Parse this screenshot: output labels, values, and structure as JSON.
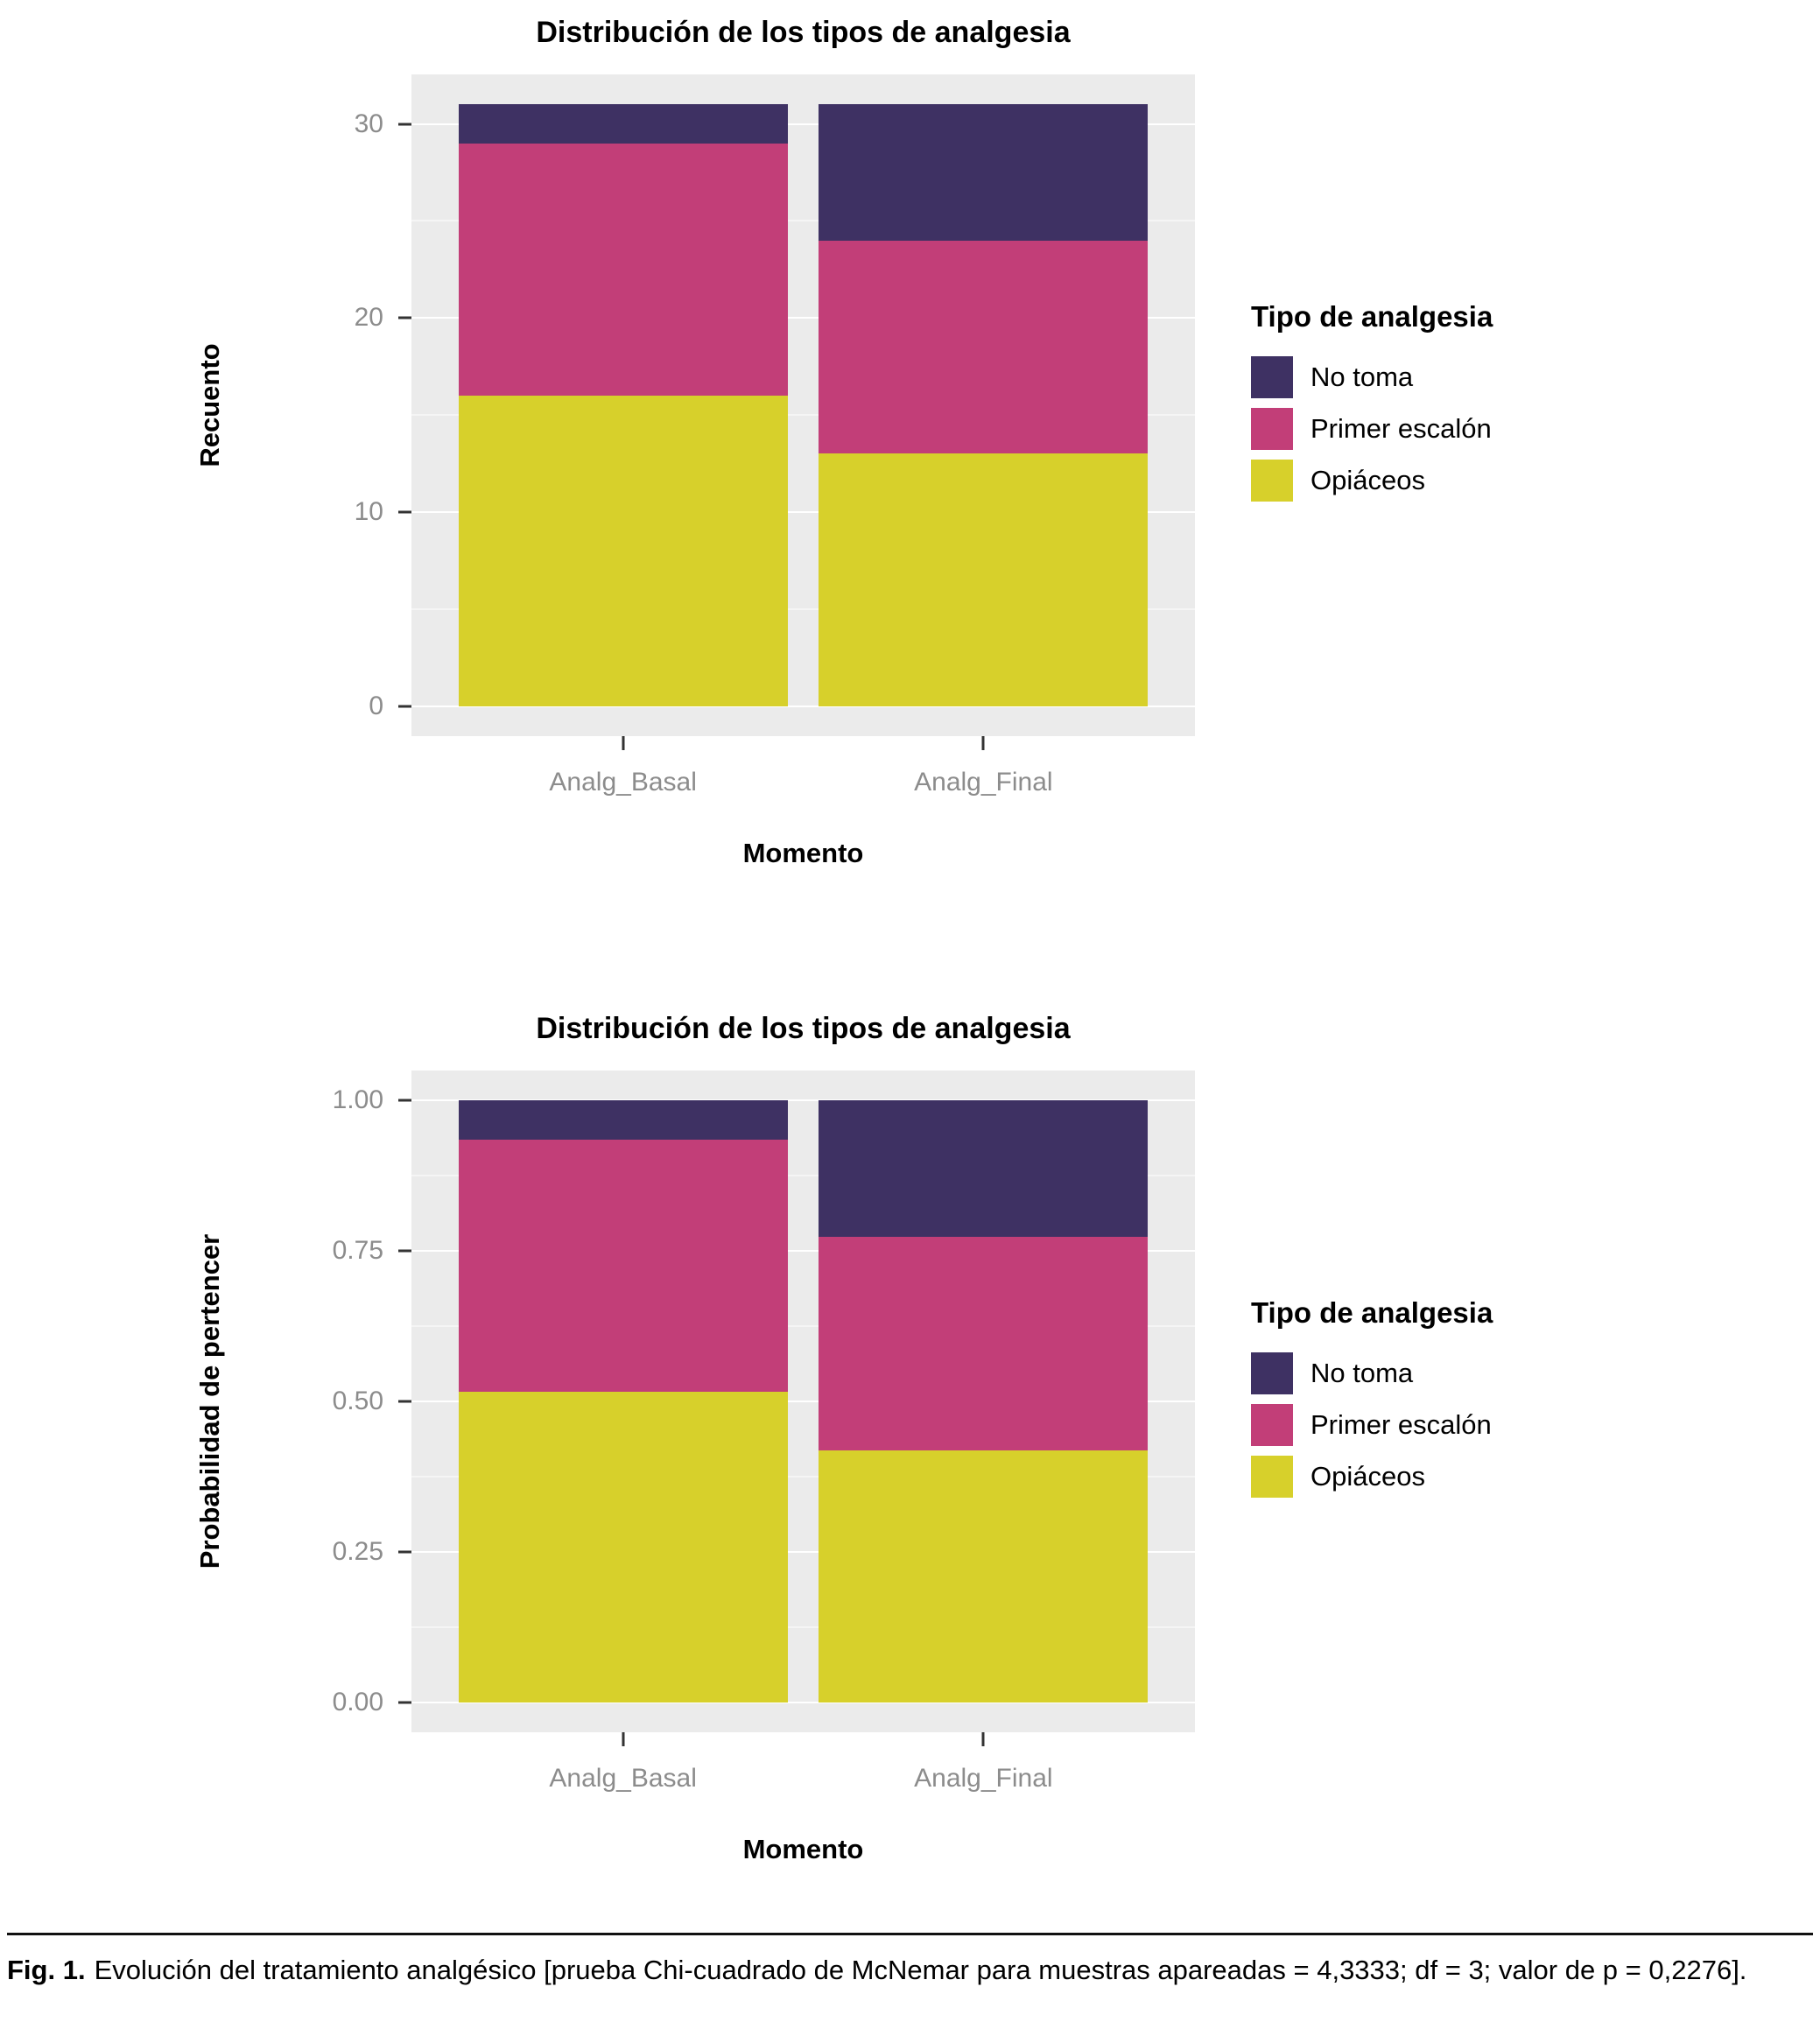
{
  "palette": {
    "no_toma": "#3e3163",
    "primer_escalon": "#c23e78",
    "opiaceos": "#d7d02b",
    "panel_background": "#ebebeb",
    "gridline": "#ffffff",
    "tick_text": "#8c8c8c"
  },
  "legend": {
    "title": "Tipo de analgesia",
    "entries": [
      {
        "label": "No toma",
        "color": "#3e3163"
      },
      {
        "label": "Primer escalón",
        "color": "#c23e78"
      },
      {
        "label": "Opiáceos",
        "color": "#d7d02b"
      }
    ]
  },
  "chart_data": [
    {
      "type": "bar",
      "stacked": true,
      "title": "Distribución de los tipos de analgesia",
      "xlabel": "Momento",
      "ylabel": "Recuento",
      "categories": [
        "Analg_Basal",
        "Analg_Final"
      ],
      "series": [
        {
          "name": "Opiáceos",
          "values": [
            16,
            13
          ]
        },
        {
          "name": "Primer escalón",
          "values": [
            13,
            11
          ]
        },
        {
          "name": "No toma",
          "values": [
            2,
            7
          ]
        }
      ],
      "colors": [
        "#d7d02b",
        "#c23e78",
        "#3e3163"
      ],
      "ymax": 31,
      "ylim": [
        0,
        31
      ],
      "yticks": [
        {
          "v": 0,
          "label": "0"
        },
        {
          "v": 10,
          "label": "10"
        },
        {
          "v": 20,
          "label": "20"
        },
        {
          "v": 30,
          "label": "30"
        }
      ],
      "yminor": [
        5,
        15,
        25
      ],
      "legend_title": "Tipo de analgesia",
      "legend_position": "right",
      "grid": true
    },
    {
      "type": "bar",
      "stacked": true,
      "title": "Distribución de los tipos de analgesia",
      "xlabel": "Momento",
      "ylabel": "Probabilidad de pertencer",
      "categories": [
        "Analg_Basal",
        "Analg_Final"
      ],
      "series": [
        {
          "name": "Opiáceos",
          "values": [
            0.516,
            0.419
          ]
        },
        {
          "name": "Primer escalón",
          "values": [
            0.419,
            0.355
          ]
        },
        {
          "name": "No toma",
          "values": [
            0.065,
            0.226
          ]
        }
      ],
      "colors": [
        "#d7d02b",
        "#c23e78",
        "#3e3163"
      ],
      "ymax": 1.0,
      "ylim": [
        0,
        1.0
      ],
      "yticks": [
        {
          "v": 0,
          "label": "0.00"
        },
        {
          "v": 0.25,
          "label": "0.25"
        },
        {
          "v": 0.5,
          "label": "0.50"
        },
        {
          "v": 0.75,
          "label": "0.75"
        },
        {
          "v": 1.0,
          "label": "1.00"
        }
      ],
      "yminor": [
        0.125,
        0.375,
        0.625,
        0.875
      ],
      "legend_title": "Tipo de analgesia",
      "legend_position": "right",
      "grid": true
    }
  ],
  "caption": {
    "label": "Fig. 1.",
    "text": "Evolución del tratamiento analgésico [prueba Chi-cuadrado de McNemar para muestras apareadas = 4,3333; df = 3; valor de p = 0,2276]."
  }
}
